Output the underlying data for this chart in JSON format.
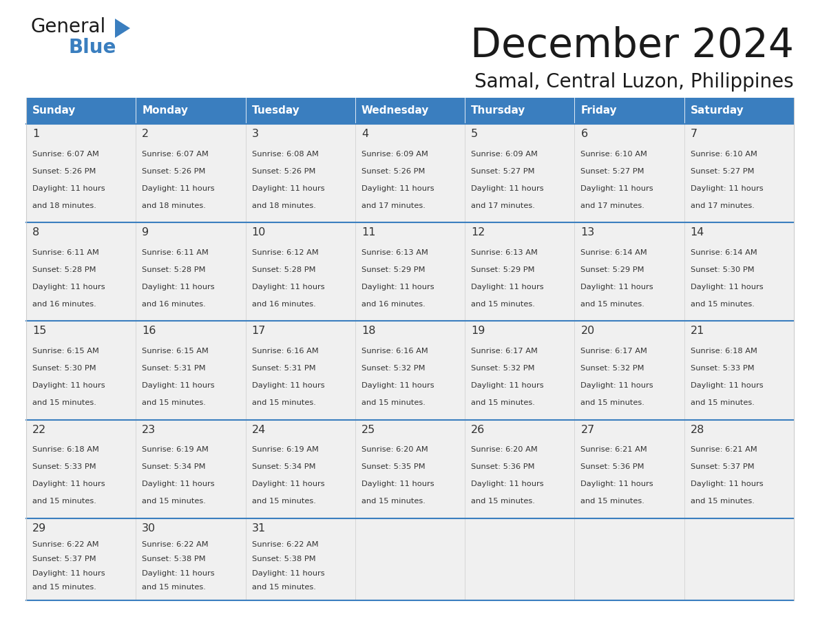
{
  "title": "December 2024",
  "subtitle": "Samal, Central Luzon, Philippines",
  "header_color": "#3a7ebf",
  "header_text_color": "#ffffff",
  "cell_bg_color": "#f0f0f0",
  "border_color": "#3a7ebf",
  "thin_border_color": "#cccccc",
  "day_names": [
    "Sunday",
    "Monday",
    "Tuesday",
    "Wednesday",
    "Thursday",
    "Friday",
    "Saturday"
  ],
  "days": [
    {
      "date": 1,
      "row": 0,
      "col": 0,
      "sunrise": "6:07 AM",
      "sunset": "5:26 PM",
      "daylight_hours": 11,
      "daylight_minutes": 18
    },
    {
      "date": 2,
      "row": 0,
      "col": 1,
      "sunrise": "6:07 AM",
      "sunset": "5:26 PM",
      "daylight_hours": 11,
      "daylight_minutes": 18
    },
    {
      "date": 3,
      "row": 0,
      "col": 2,
      "sunrise": "6:08 AM",
      "sunset": "5:26 PM",
      "daylight_hours": 11,
      "daylight_minutes": 18
    },
    {
      "date": 4,
      "row": 0,
      "col": 3,
      "sunrise": "6:09 AM",
      "sunset": "5:26 PM",
      "daylight_hours": 11,
      "daylight_minutes": 17
    },
    {
      "date": 5,
      "row": 0,
      "col": 4,
      "sunrise": "6:09 AM",
      "sunset": "5:27 PM",
      "daylight_hours": 11,
      "daylight_minutes": 17
    },
    {
      "date": 6,
      "row": 0,
      "col": 5,
      "sunrise": "6:10 AM",
      "sunset": "5:27 PM",
      "daylight_hours": 11,
      "daylight_minutes": 17
    },
    {
      "date": 7,
      "row": 0,
      "col": 6,
      "sunrise": "6:10 AM",
      "sunset": "5:27 PM",
      "daylight_hours": 11,
      "daylight_minutes": 17
    },
    {
      "date": 8,
      "row": 1,
      "col": 0,
      "sunrise": "6:11 AM",
      "sunset": "5:28 PM",
      "daylight_hours": 11,
      "daylight_minutes": 16
    },
    {
      "date": 9,
      "row": 1,
      "col": 1,
      "sunrise": "6:11 AM",
      "sunset": "5:28 PM",
      "daylight_hours": 11,
      "daylight_minutes": 16
    },
    {
      "date": 10,
      "row": 1,
      "col": 2,
      "sunrise": "6:12 AM",
      "sunset": "5:28 PM",
      "daylight_hours": 11,
      "daylight_minutes": 16
    },
    {
      "date": 11,
      "row": 1,
      "col": 3,
      "sunrise": "6:13 AM",
      "sunset": "5:29 PM",
      "daylight_hours": 11,
      "daylight_minutes": 16
    },
    {
      "date": 12,
      "row": 1,
      "col": 4,
      "sunrise": "6:13 AM",
      "sunset": "5:29 PM",
      "daylight_hours": 11,
      "daylight_minutes": 15
    },
    {
      "date": 13,
      "row": 1,
      "col": 5,
      "sunrise": "6:14 AM",
      "sunset": "5:29 PM",
      "daylight_hours": 11,
      "daylight_minutes": 15
    },
    {
      "date": 14,
      "row": 1,
      "col": 6,
      "sunrise": "6:14 AM",
      "sunset": "5:30 PM",
      "daylight_hours": 11,
      "daylight_minutes": 15
    },
    {
      "date": 15,
      "row": 2,
      "col": 0,
      "sunrise": "6:15 AM",
      "sunset": "5:30 PM",
      "daylight_hours": 11,
      "daylight_minutes": 15
    },
    {
      "date": 16,
      "row": 2,
      "col": 1,
      "sunrise": "6:15 AM",
      "sunset": "5:31 PM",
      "daylight_hours": 11,
      "daylight_minutes": 15
    },
    {
      "date": 17,
      "row": 2,
      "col": 2,
      "sunrise": "6:16 AM",
      "sunset": "5:31 PM",
      "daylight_hours": 11,
      "daylight_minutes": 15
    },
    {
      "date": 18,
      "row": 2,
      "col": 3,
      "sunrise": "6:16 AM",
      "sunset": "5:32 PM",
      "daylight_hours": 11,
      "daylight_minutes": 15
    },
    {
      "date": 19,
      "row": 2,
      "col": 4,
      "sunrise": "6:17 AM",
      "sunset": "5:32 PM",
      "daylight_hours": 11,
      "daylight_minutes": 15
    },
    {
      "date": 20,
      "row": 2,
      "col": 5,
      "sunrise": "6:17 AM",
      "sunset": "5:32 PM",
      "daylight_hours": 11,
      "daylight_minutes": 15
    },
    {
      "date": 21,
      "row": 2,
      "col": 6,
      "sunrise": "6:18 AM",
      "sunset": "5:33 PM",
      "daylight_hours": 11,
      "daylight_minutes": 15
    },
    {
      "date": 22,
      "row": 3,
      "col": 0,
      "sunrise": "6:18 AM",
      "sunset": "5:33 PM",
      "daylight_hours": 11,
      "daylight_minutes": 15
    },
    {
      "date": 23,
      "row": 3,
      "col": 1,
      "sunrise": "6:19 AM",
      "sunset": "5:34 PM",
      "daylight_hours": 11,
      "daylight_minutes": 15
    },
    {
      "date": 24,
      "row": 3,
      "col": 2,
      "sunrise": "6:19 AM",
      "sunset": "5:34 PM",
      "daylight_hours": 11,
      "daylight_minutes": 15
    },
    {
      "date": 25,
      "row": 3,
      "col": 3,
      "sunrise": "6:20 AM",
      "sunset": "5:35 PM",
      "daylight_hours": 11,
      "daylight_minutes": 15
    },
    {
      "date": 26,
      "row": 3,
      "col": 4,
      "sunrise": "6:20 AM",
      "sunset": "5:36 PM",
      "daylight_hours": 11,
      "daylight_minutes": 15
    },
    {
      "date": 27,
      "row": 3,
      "col": 5,
      "sunrise": "6:21 AM",
      "sunset": "5:36 PM",
      "daylight_hours": 11,
      "daylight_minutes": 15
    },
    {
      "date": 28,
      "row": 3,
      "col": 6,
      "sunrise": "6:21 AM",
      "sunset": "5:37 PM",
      "daylight_hours": 11,
      "daylight_minutes": 15
    },
    {
      "date": 29,
      "row": 4,
      "col": 0,
      "sunrise": "6:22 AM",
      "sunset": "5:37 PM",
      "daylight_hours": 11,
      "daylight_minutes": 15
    },
    {
      "date": 30,
      "row": 4,
      "col": 1,
      "sunrise": "6:22 AM",
      "sunset": "5:38 PM",
      "daylight_hours": 11,
      "daylight_minutes": 15
    },
    {
      "date": 31,
      "row": 4,
      "col": 2,
      "sunrise": "6:22 AM",
      "sunset": "5:38 PM",
      "daylight_hours": 11,
      "daylight_minutes": 15
    }
  ],
  "num_rows": 5,
  "logo_text_general": "General",
  "logo_text_blue": "Blue",
  "logo_color_general": "#1a1a1a",
  "logo_color_blue": "#3a7ebf",
  "logo_triangle_color": "#3a7ebf",
  "fig_width": 11.88,
  "fig_height": 9.18,
  "dpi": 100
}
